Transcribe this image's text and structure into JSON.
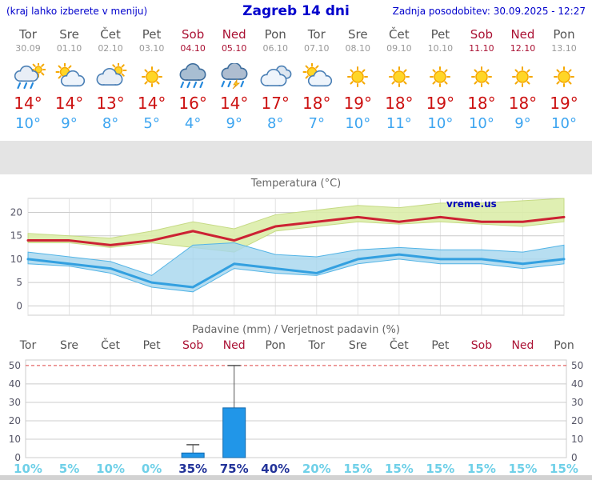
{
  "header": {
    "note": "(kraj lahko izberete v meniju)",
    "title": "Zagreb 14 dni",
    "updated": "Zadnja posodobitev: 30.09.2025 - 12:27"
  },
  "colors": {
    "header_blue": "#0000cc",
    "weekend_red": "#aa1133",
    "weekday_gray": "#555555",
    "tmax_red": "#cc2233",
    "tmin_blue": "#33a0e0",
    "band_green": "#dcedaa",
    "band_green_edge": "#c6da85",
    "band_blue": "#a5d6ee",
    "band_blue_edge": "#53b4e6",
    "bar_blue": "#2196e8",
    "bar_edge": "#1169ad",
    "prob_low_cyan": "#6fd0e8",
    "prob_high_navy": "#223399",
    "grid_gray": "#cccccc",
    "limit_red_dashed": "#dd4444"
  },
  "days": [
    {
      "name": "Tor",
      "date": "30.09",
      "weekend": false,
      "icon": "rain",
      "tmax": "14°",
      "tmin": "10°"
    },
    {
      "name": "Sre",
      "date": "01.10",
      "weekend": false,
      "icon": "partly-cloudy",
      "tmax": "14°",
      "tmin": "9°"
    },
    {
      "name": "Čet",
      "date": "02.10",
      "weekend": false,
      "icon": "mostly-cloudy",
      "tmax": "13°",
      "tmin": "8°"
    },
    {
      "name": "Pet",
      "date": "03.10",
      "weekend": false,
      "icon": "sunny",
      "tmax": "14°",
      "tmin": "5°"
    },
    {
      "name": "Sob",
      "date": "04.10",
      "weekend": true,
      "icon": "heavy-rain",
      "tmax": "16°",
      "tmin": "4°"
    },
    {
      "name": "Ned",
      "date": "05.10",
      "weekend": true,
      "icon": "storm-rain",
      "tmax": "14°",
      "tmin": "9°"
    },
    {
      "name": "Pon",
      "date": "06.10",
      "weekend": false,
      "icon": "cloudy",
      "tmax": "17°",
      "tmin": "8°"
    },
    {
      "name": "Tor",
      "date": "07.10",
      "weekend": false,
      "icon": "partly-cloudy",
      "tmax": "18°",
      "tmin": "7°"
    },
    {
      "name": "Sre",
      "date": "08.10",
      "weekend": false,
      "icon": "sunny",
      "tmax": "19°",
      "tmin": "10°"
    },
    {
      "name": "Čet",
      "date": "09.10",
      "weekend": false,
      "icon": "sunny",
      "tmax": "18°",
      "tmin": "11°"
    },
    {
      "name": "Pet",
      "date": "10.10",
      "weekend": false,
      "icon": "sunny",
      "tmax": "19°",
      "tmin": "10°"
    },
    {
      "name": "Sob",
      "date": "11.10",
      "weekend": true,
      "icon": "sunny",
      "tmax": "18°",
      "tmin": "10°"
    },
    {
      "name": "Ned",
      "date": "12.10",
      "weekend": true,
      "icon": "sunny",
      "tmax": "18°",
      "tmin": "9°"
    },
    {
      "name": "Pon",
      "date": "13.10",
      "weekend": false,
      "icon": "sunny",
      "tmax": "19°",
      "tmin": "10°"
    }
  ],
  "chart_data": [
    {
      "type": "line",
      "title": "Temperatura (°C)",
      "watermark": "vreme.us",
      "ylim": [
        -2,
        23
      ],
      "yticks": [
        0,
        5,
        10,
        15,
        20
      ],
      "grid": true,
      "series": [
        {
          "name": "max temperature",
          "color": "#cc2233",
          "values": [
            14,
            14,
            13,
            14,
            16,
            14,
            17,
            18,
            19,
            18,
            19,
            18,
            18,
            19
          ]
        },
        {
          "name": "min temperature",
          "color": "#33a0e0",
          "values": [
            10,
            9,
            8,
            5,
            4,
            9,
            8,
            7,
            10,
            11,
            10,
            10,
            9,
            10
          ]
        }
      ],
      "bands": [
        {
          "name": "max-range",
          "color": "#dcedaa",
          "edge": "#c6da85",
          "opacity": 0.9,
          "upper": [
            15.5,
            15,
            14.5,
            16,
            18,
            16.5,
            19.5,
            20.5,
            21.5,
            21,
            22,
            22,
            22.5,
            23
          ],
          "lower": [
            13.5,
            13.5,
            12.5,
            13.5,
            12.5,
            11.5,
            16,
            17,
            18,
            17.5,
            18,
            17.5,
            17,
            18
          ]
        },
        {
          "name": "min-range",
          "color": "#a5d6ee",
          "edge": "#53b4e6",
          "opacity": 0.8,
          "upper": [
            11.5,
            10.5,
            9.5,
            6.5,
            13,
            13.5,
            11,
            10.5,
            12,
            12.5,
            12,
            12,
            11.5,
            13
          ],
          "lower": [
            9,
            8.5,
            7,
            4,
            3,
            8,
            7,
            6.5,
            9,
            10,
            9,
            9,
            8,
            9
          ]
        }
      ]
    },
    {
      "type": "bar",
      "title": "Padavine (mm) / Verjetnost padavin (%)",
      "categories": [
        "Tor",
        "Sre",
        "Čet",
        "Pet",
        "Sob",
        "Ned",
        "Pon",
        "Tor",
        "Sre",
        "Čet",
        "Pet",
        "Sob",
        "Ned",
        "Pon"
      ],
      "weekend": [
        false,
        false,
        false,
        false,
        true,
        true,
        false,
        false,
        false,
        false,
        false,
        true,
        true,
        false
      ],
      "values_mm": [
        0,
        0,
        0,
        0,
        2.5,
        27,
        0,
        0,
        0,
        0,
        0,
        0,
        0,
        0
      ],
      "whisker_max_mm": [
        0,
        0,
        0,
        0,
        7,
        50,
        0,
        0,
        0,
        0,
        0,
        0,
        0,
        0
      ],
      "probabilities": [
        "10%",
        "5%",
        "10%",
        "0%",
        "35%",
        "75%",
        "40%",
        "20%",
        "15%",
        "15%",
        "15%",
        "15%",
        "15%",
        "15%"
      ],
      "prob_strong": [
        false,
        false,
        false,
        false,
        true,
        true,
        true,
        false,
        false,
        false,
        false,
        false,
        false,
        false
      ],
      "ylim": [
        0,
        53
      ],
      "yticks": [
        0,
        10,
        20,
        30,
        40,
        50
      ],
      "legend": "none"
    }
  ]
}
